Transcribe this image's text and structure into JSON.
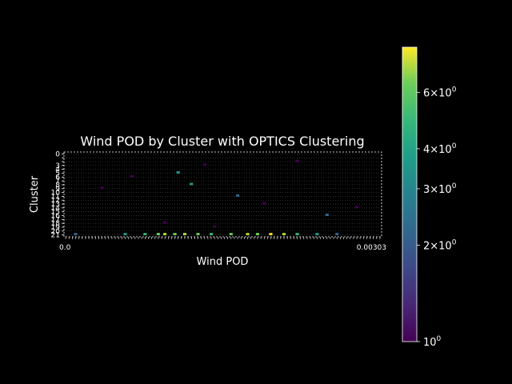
{
  "chart_data": {
    "type": "heatmap",
    "title": "Wind POD by Cluster with OPTICS Clustering",
    "xlabel": "Wind POD",
    "ylabel": "Cluster",
    "y_tick_labels": [
      "0",
      "1",
      "2",
      "3",
      "4",
      "5",
      "6",
      "7",
      "8",
      "9",
      "10",
      "11",
      "12",
      "13",
      "14",
      "15",
      "16",
      "17",
      "18",
      "19",
      "20",
      "21"
    ],
    "y_tick_labels_visible": [
      "0",
      "3",
      "4",
      "5",
      "6",
      "7",
      "8",
      "9",
      "10",
      "11",
      "12",
      "13",
      "14",
      "15",
      "16",
      "17",
      "18",
      "19",
      "20",
      "21"
    ],
    "x_tick_labels_visible": [
      "0.0",
      "0.00303"
    ],
    "x_tick_count": 96,
    "grid": true,
    "colormap": "viridis",
    "colorbar": {
      "scale": "log",
      "range": [
        1,
        8.3
      ],
      "ticks": [
        {
          "value": 1,
          "label": "10^0"
        },
        {
          "value": 2,
          "label": "2×10^0"
        },
        {
          "value": 3,
          "label": "3×10^0"
        },
        {
          "value": 4,
          "label": "4×10^0"
        },
        {
          "value": 6,
          "label": "6×10^0"
        }
      ]
    },
    "cells_note": "sparse counts; most cells 1-2, highest values in bottom cluster row",
    "cells": [
      {
        "row": 21,
        "col": 3,
        "value": 2
      },
      {
        "row": 21,
        "col": 18,
        "value": 3
      },
      {
        "row": 21,
        "col": 24,
        "value": 4
      },
      {
        "row": 21,
        "col": 28,
        "value": 5
      },
      {
        "row": 21,
        "col": 30,
        "value": 6
      },
      {
        "row": 21,
        "col": 33,
        "value": 5
      },
      {
        "row": 21,
        "col": 36,
        "value": 7
      },
      {
        "row": 21,
        "col": 40,
        "value": 5
      },
      {
        "row": 21,
        "col": 44,
        "value": 4
      },
      {
        "row": 21,
        "col": 50,
        "value": 5
      },
      {
        "row": 21,
        "col": 55,
        "value": 6
      },
      {
        "row": 21,
        "col": 58,
        "value": 5
      },
      {
        "row": 21,
        "col": 62,
        "value": 8
      },
      {
        "row": 21,
        "col": 66,
        "value": 6
      },
      {
        "row": 21,
        "col": 70,
        "value": 4
      },
      {
        "row": 21,
        "col": 76,
        "value": 3
      },
      {
        "row": 21,
        "col": 82,
        "value": 2
      },
      {
        "row": 5,
        "col": 34,
        "value": 3
      },
      {
        "row": 8,
        "col": 38,
        "value": 3
      },
      {
        "row": 11,
        "col": 52,
        "value": 2
      },
      {
        "row": 16,
        "col": 79,
        "value": 2
      },
      {
        "row": 3,
        "col": 42,
        "value": 1
      },
      {
        "row": 6,
        "col": 20,
        "value": 1
      },
      {
        "row": 9,
        "col": 11,
        "value": 1
      },
      {
        "row": 13,
        "col": 60,
        "value": 1
      },
      {
        "row": 18,
        "col": 30,
        "value": 1
      },
      {
        "row": 2,
        "col": 70,
        "value": 1
      },
      {
        "row": 14,
        "col": 88,
        "value": 1
      },
      {
        "row": 19,
        "col": 45,
        "value": 1
      }
    ]
  }
}
